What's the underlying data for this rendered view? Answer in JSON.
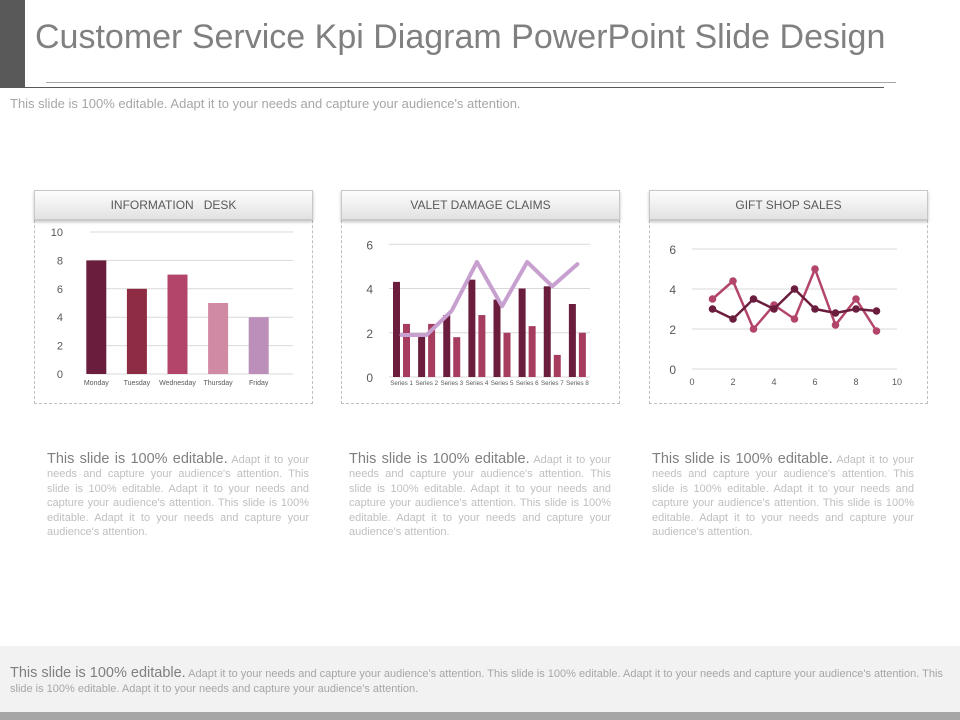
{
  "title": "Customer Service Kpi Diagram PowerPoint Slide Design",
  "subtitle": "This slide is 100% editable. Adapt it to your needs and capture your audience's attention.",
  "chart_data": [
    {
      "type": "bar",
      "title": "INFORMATION   DESK",
      "categories": [
        "Monday",
        "Tuesday",
        "Wednesday",
        "Thursday",
        "Friday"
      ],
      "values": [
        8,
        6,
        7,
        5,
        4
      ],
      "y_ticks": [
        "0",
        "2",
        "4",
        "6",
        "8",
        "10"
      ],
      "ylim": [
        0,
        10
      ],
      "grid": true,
      "colors": [
        "#6b1d3e",
        "#8e2c43",
        "#b3456a",
        "#d18aa4",
        "#bb8fb9"
      ]
    },
    {
      "type": "bar",
      "title": "VALET DAMAGE CLAIMS",
      "categories": [
        "Series 1",
        "Series 2",
        "Series 3",
        "Series 4",
        "Series 5",
        "Series 6",
        "Series 7",
        "Series 8"
      ],
      "series": [
        {
          "values": [
            4.3,
            1.9,
            2.8,
            4.4,
            3.5,
            4.0,
            4.1,
            3.3
          ]
        },
        {
          "values": [
            2.4,
            2.4,
            1.8,
            2.8,
            2.0,
            2.3,
            1.0,
            2.0
          ]
        }
      ],
      "line_values": [
        1.9,
        1.9,
        3.0,
        5.2,
        3.2,
        5.2,
        4.1,
        5.1
      ],
      "y_ticks": [
        "0",
        "2",
        "4",
        "6"
      ],
      "ylim": [
        0,
        6.6
      ],
      "grid": true,
      "colors": [
        "#6b1d3e",
        "#a63c5e",
        "#c7a0d0"
      ]
    },
    {
      "type": "line",
      "title": "GIFT SHOP SALES",
      "x_ticks": [
        "0",
        "2",
        "4",
        "6",
        "8",
        "10"
      ],
      "y_ticks": [
        "0",
        "2",
        "4",
        "6"
      ],
      "xlim": [
        0,
        10
      ],
      "ylim": [
        0,
        6
      ],
      "grid": true,
      "series": [
        {
          "x": [
            1,
            2,
            3,
            4,
            5,
            6,
            7,
            8,
            9
          ],
          "y": [
            3.0,
            2.5,
            3.5,
            3.0,
            4.0,
            3.0,
            2.8,
            3.0,
            2.9
          ]
        },
        {
          "x": [
            1,
            2,
            3,
            4,
            5,
            6,
            7,
            8,
            9
          ],
          "y": [
            3.5,
            4.4,
            2.0,
            3.2,
            2.5,
            5.0,
            2.2,
            3.5,
            1.9
          ]
        }
      ],
      "colors": [
        "#6b1d3e",
        "#b3456a"
      ]
    }
  ],
  "panel_texts": [
    {
      "lead": "This slide is 100% editable.",
      "body": "Adapt it to your needs and capture your audience's attention. This slide is 100% editable. Adapt it to your needs and capture your audience's attention. This slide is 100% editable. Adapt it to your needs and capture your audience's attention."
    },
    {
      "lead": "This slide is 100% editable.",
      "body": "Adapt it to your needs and capture your audience's attention. This slide is 100% editable. Adapt it to your needs and capture your audience's attention. This slide is 100% editable. Adapt it to your needs and capture your audience's attention."
    },
    {
      "lead": "This slide is 100% editable.",
      "body": "Adapt it to your needs and capture your audience's attention. This slide is 100% editable. Adapt it to your needs and capture your audience's attention. This slide is 100% editable. Adapt it to your needs and capture your audience's attention."
    }
  ],
  "footer": {
    "lead": "This slide is 100% editable.",
    "body": "Adapt it to your needs and capture your audience's attention. This slide is 100% editable. Adapt it to your needs and capture your audience's attention. This slide is 100% editable. Adapt it to your needs and capture your audience's attention."
  }
}
